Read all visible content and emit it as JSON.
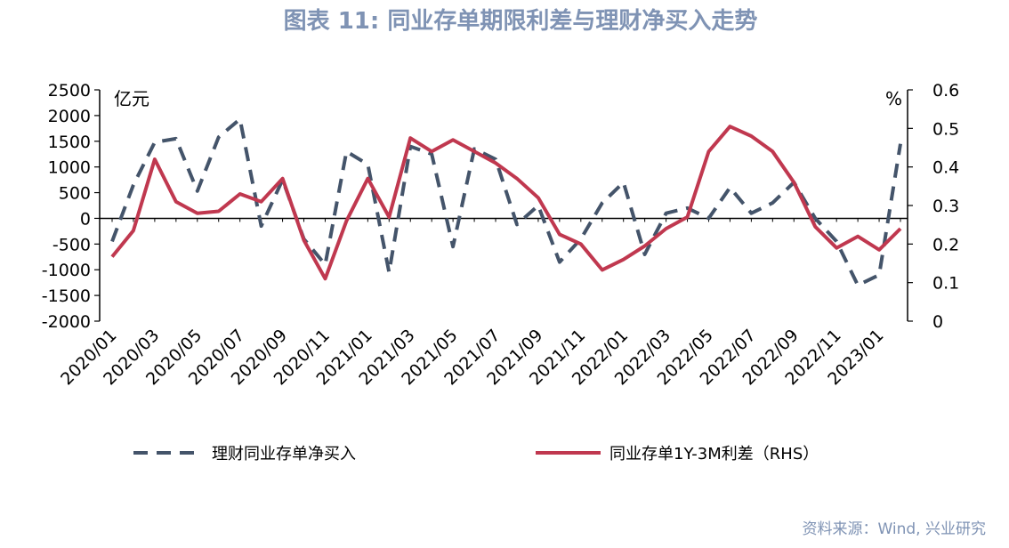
{
  "chart_data": {
    "type": "line",
    "title": "图表 11: 同业存单期限利差与理财净买入走势",
    "left_unit": "亿元",
    "right_unit": "%",
    "y_left": {
      "min": -2000,
      "max": 2500,
      "ticks": [
        "2500",
        "2000",
        "1500",
        "1000",
        "500",
        "0",
        "-500",
        "-1000",
        "-1500",
        "-2000"
      ]
    },
    "y_right": {
      "min": 0,
      "max": 0.6,
      "ticks": [
        "0.6",
        "0.5",
        "0.4",
        "0.3",
        "0.2",
        "0.1",
        "0"
      ]
    },
    "x_tick_labels": [
      "2020/01",
      "2020/03",
      "2020/05",
      "2020/07",
      "2020/09",
      "2020/11",
      "2021/01",
      "2021/03",
      "2021/05",
      "2021/07",
      "2021/09",
      "2021/11",
      "2022/01",
      "2022/03",
      "2022/05",
      "2022/07",
      "2022/09",
      "2022/11",
      "2023/01"
    ],
    "series": [
      {
        "name": "理财同业存单净买入",
        "axis": "left",
        "color": "#44546a",
        "dash": true,
        "values": [
          -450,
          650,
          1480,
          1550,
          530,
          1580,
          1930,
          -150,
          750,
          -400,
          -900,
          1300,
          1050,
          -1050,
          1400,
          1250,
          -550,
          1350,
          1150,
          -120,
          250,
          -850,
          -400,
          300,
          700,
          -700,
          100,
          200,
          0,
          600,
          100,
          300,
          700,
          0,
          -450,
          -1300,
          -1100,
          1450
        ],
        "x_index_start": 0
      },
      {
        "name": "同业存单1Y-3M利差（RHS）",
        "axis": "right",
        "color": "#c0384f",
        "dash": false,
        "values": [
          0.167,
          0.235,
          0.42,
          0.31,
          0.28,
          0.285,
          0.33,
          0.31,
          0.37,
          0.21,
          0.11,
          0.26,
          0.37,
          0.27,
          0.475,
          0.44,
          0.47,
          0.44,
          0.41,
          0.37,
          0.32,
          0.225,
          0.2,
          0.133,
          0.16,
          0.195,
          0.24,
          0.27,
          0.44,
          0.505,
          0.48,
          0.44,
          0.36,
          0.245,
          0.19,
          0.22,
          0.185,
          0.24
        ]
      }
    ],
    "legend": [
      {
        "label": "理财同业存单净买入",
        "color": "#44546a",
        "dash": true
      },
      {
        "label": "同业存单1Y-3M利差（RHS）",
        "color": "#c0384f",
        "dash": false
      }
    ],
    "legend_position": "bottom",
    "grid": false
  },
  "source": "资料来源：Wind, 兴业研究"
}
